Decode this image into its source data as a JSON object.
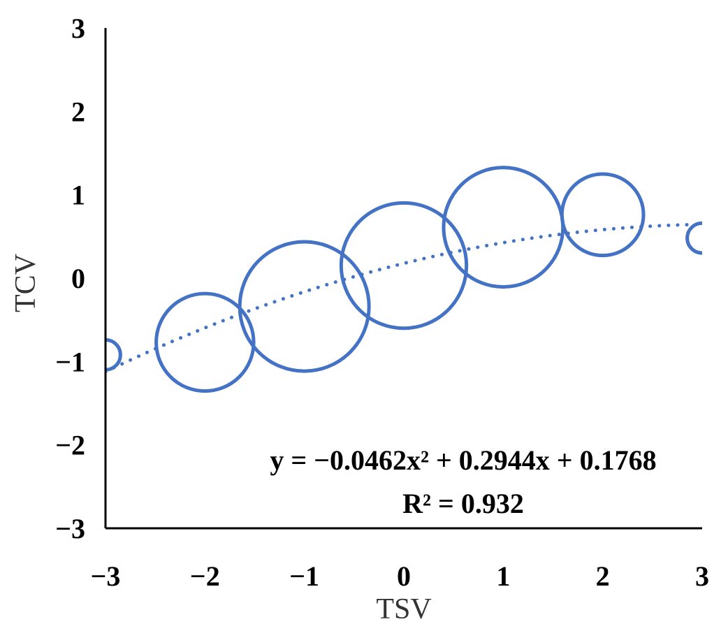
{
  "chart_data": {
    "type": "scatter",
    "subtype": "bubble",
    "xlabel": "TSV",
    "ylabel": "TCV",
    "xlim": [
      -3,
      3
    ],
    "ylim": [
      -3,
      3
    ],
    "x_ticks": [
      "−3",
      "−2",
      "−1",
      "0",
      "1",
      "2",
      "3"
    ],
    "y_ticks": [
      "3",
      "2",
      "1",
      "0",
      "−1",
      "−2",
      "−3"
    ],
    "grid": false,
    "legend": "none",
    "series": [
      {
        "points": [
          {
            "x": -3,
            "y": -0.92,
            "r": 0.15
          },
          {
            "x": -2,
            "y": -0.77,
            "r": 0.49
          },
          {
            "x": -1,
            "y": -0.34,
            "r": 0.65
          },
          {
            "x": 0,
            "y": 0.15,
            "r": 0.63
          },
          {
            "x": 1,
            "y": 0.61,
            "r": 0.6
          },
          {
            "x": 2,
            "y": 0.76,
            "r": 0.41
          },
          {
            "x": 3,
            "y": 0.48,
            "r": 0.15
          }
        ]
      }
    ],
    "trendline": {
      "type": "polynomial",
      "coefficients": {
        "a": -0.0462,
        "b": 0.2944,
        "c": 0.1768
      },
      "equation": "y = −0.0462x² + 0.2944x + 0.1768",
      "r_squared": "R² = 0.932",
      "style": "dotted"
    },
    "colors": {
      "bubble": "#4472C4",
      "trendline": "#4472C4",
      "axis": "#000000"
    }
  }
}
